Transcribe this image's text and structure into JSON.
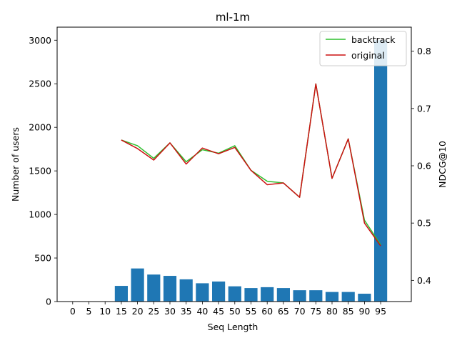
{
  "chart_data": {
    "type": "bar",
    "title": "ml-1m",
    "xlabel": "Seq Length",
    "ylabel": "Number of users",
    "y2label": "NDCG@10",
    "categories": [
      "0",
      "5",
      "10",
      "15",
      "20",
      "25",
      "30",
      "35",
      "40",
      "45",
      "50",
      "55",
      "60",
      "65",
      "70",
      "75",
      "80",
      "85",
      "90",
      "95"
    ],
    "ylim": [
      0,
      3150
    ],
    "yticks": [
      0,
      500,
      1000,
      1500,
      2000,
      2500,
      3000
    ],
    "y2lim": [
      0.363,
      0.842
    ],
    "y2ticks": [
      0.4,
      0.5,
      0.6,
      0.7,
      0.8
    ],
    "bar_color": "#1f77b4",
    "bars": {
      "name": "Number of users",
      "values": [
        0,
        0,
        0,
        180,
        380,
        310,
        295,
        255,
        210,
        230,
        175,
        155,
        165,
        155,
        130,
        130,
        110,
        110,
        90,
        3000
      ]
    },
    "series": [
      {
        "name": "backtrack",
        "color": "#2ca02c",
        "line_color": "#2dbf2d",
        "x": [
          "15",
          "20",
          "25",
          "30",
          "35",
          "40",
          "45",
          "50",
          "55",
          "60",
          "65",
          "70",
          "75",
          "80",
          "85",
          "90",
          "95"
        ],
        "values": [
          0.645,
          0.635,
          0.613,
          0.64,
          0.607,
          0.628,
          0.622,
          0.635,
          0.592,
          0.573,
          0.57,
          0.545,
          0.743,
          0.578,
          0.647,
          0.505,
          0.462
        ]
      },
      {
        "name": "original",
        "color": "#d62728",
        "line_color": "#cc1111",
        "x": [
          "15",
          "20",
          "25",
          "30",
          "35",
          "40",
          "45",
          "50",
          "55",
          "60",
          "65",
          "70",
          "75",
          "80",
          "85",
          "90",
          "95"
        ],
        "values": [
          0.645,
          0.63,
          0.61,
          0.64,
          0.603,
          0.631,
          0.621,
          0.632,
          0.592,
          0.567,
          0.57,
          0.545,
          0.743,
          0.578,
          0.647,
          0.5,
          0.46
        ]
      }
    ],
    "legend": "top-right",
    "grid": false
  }
}
